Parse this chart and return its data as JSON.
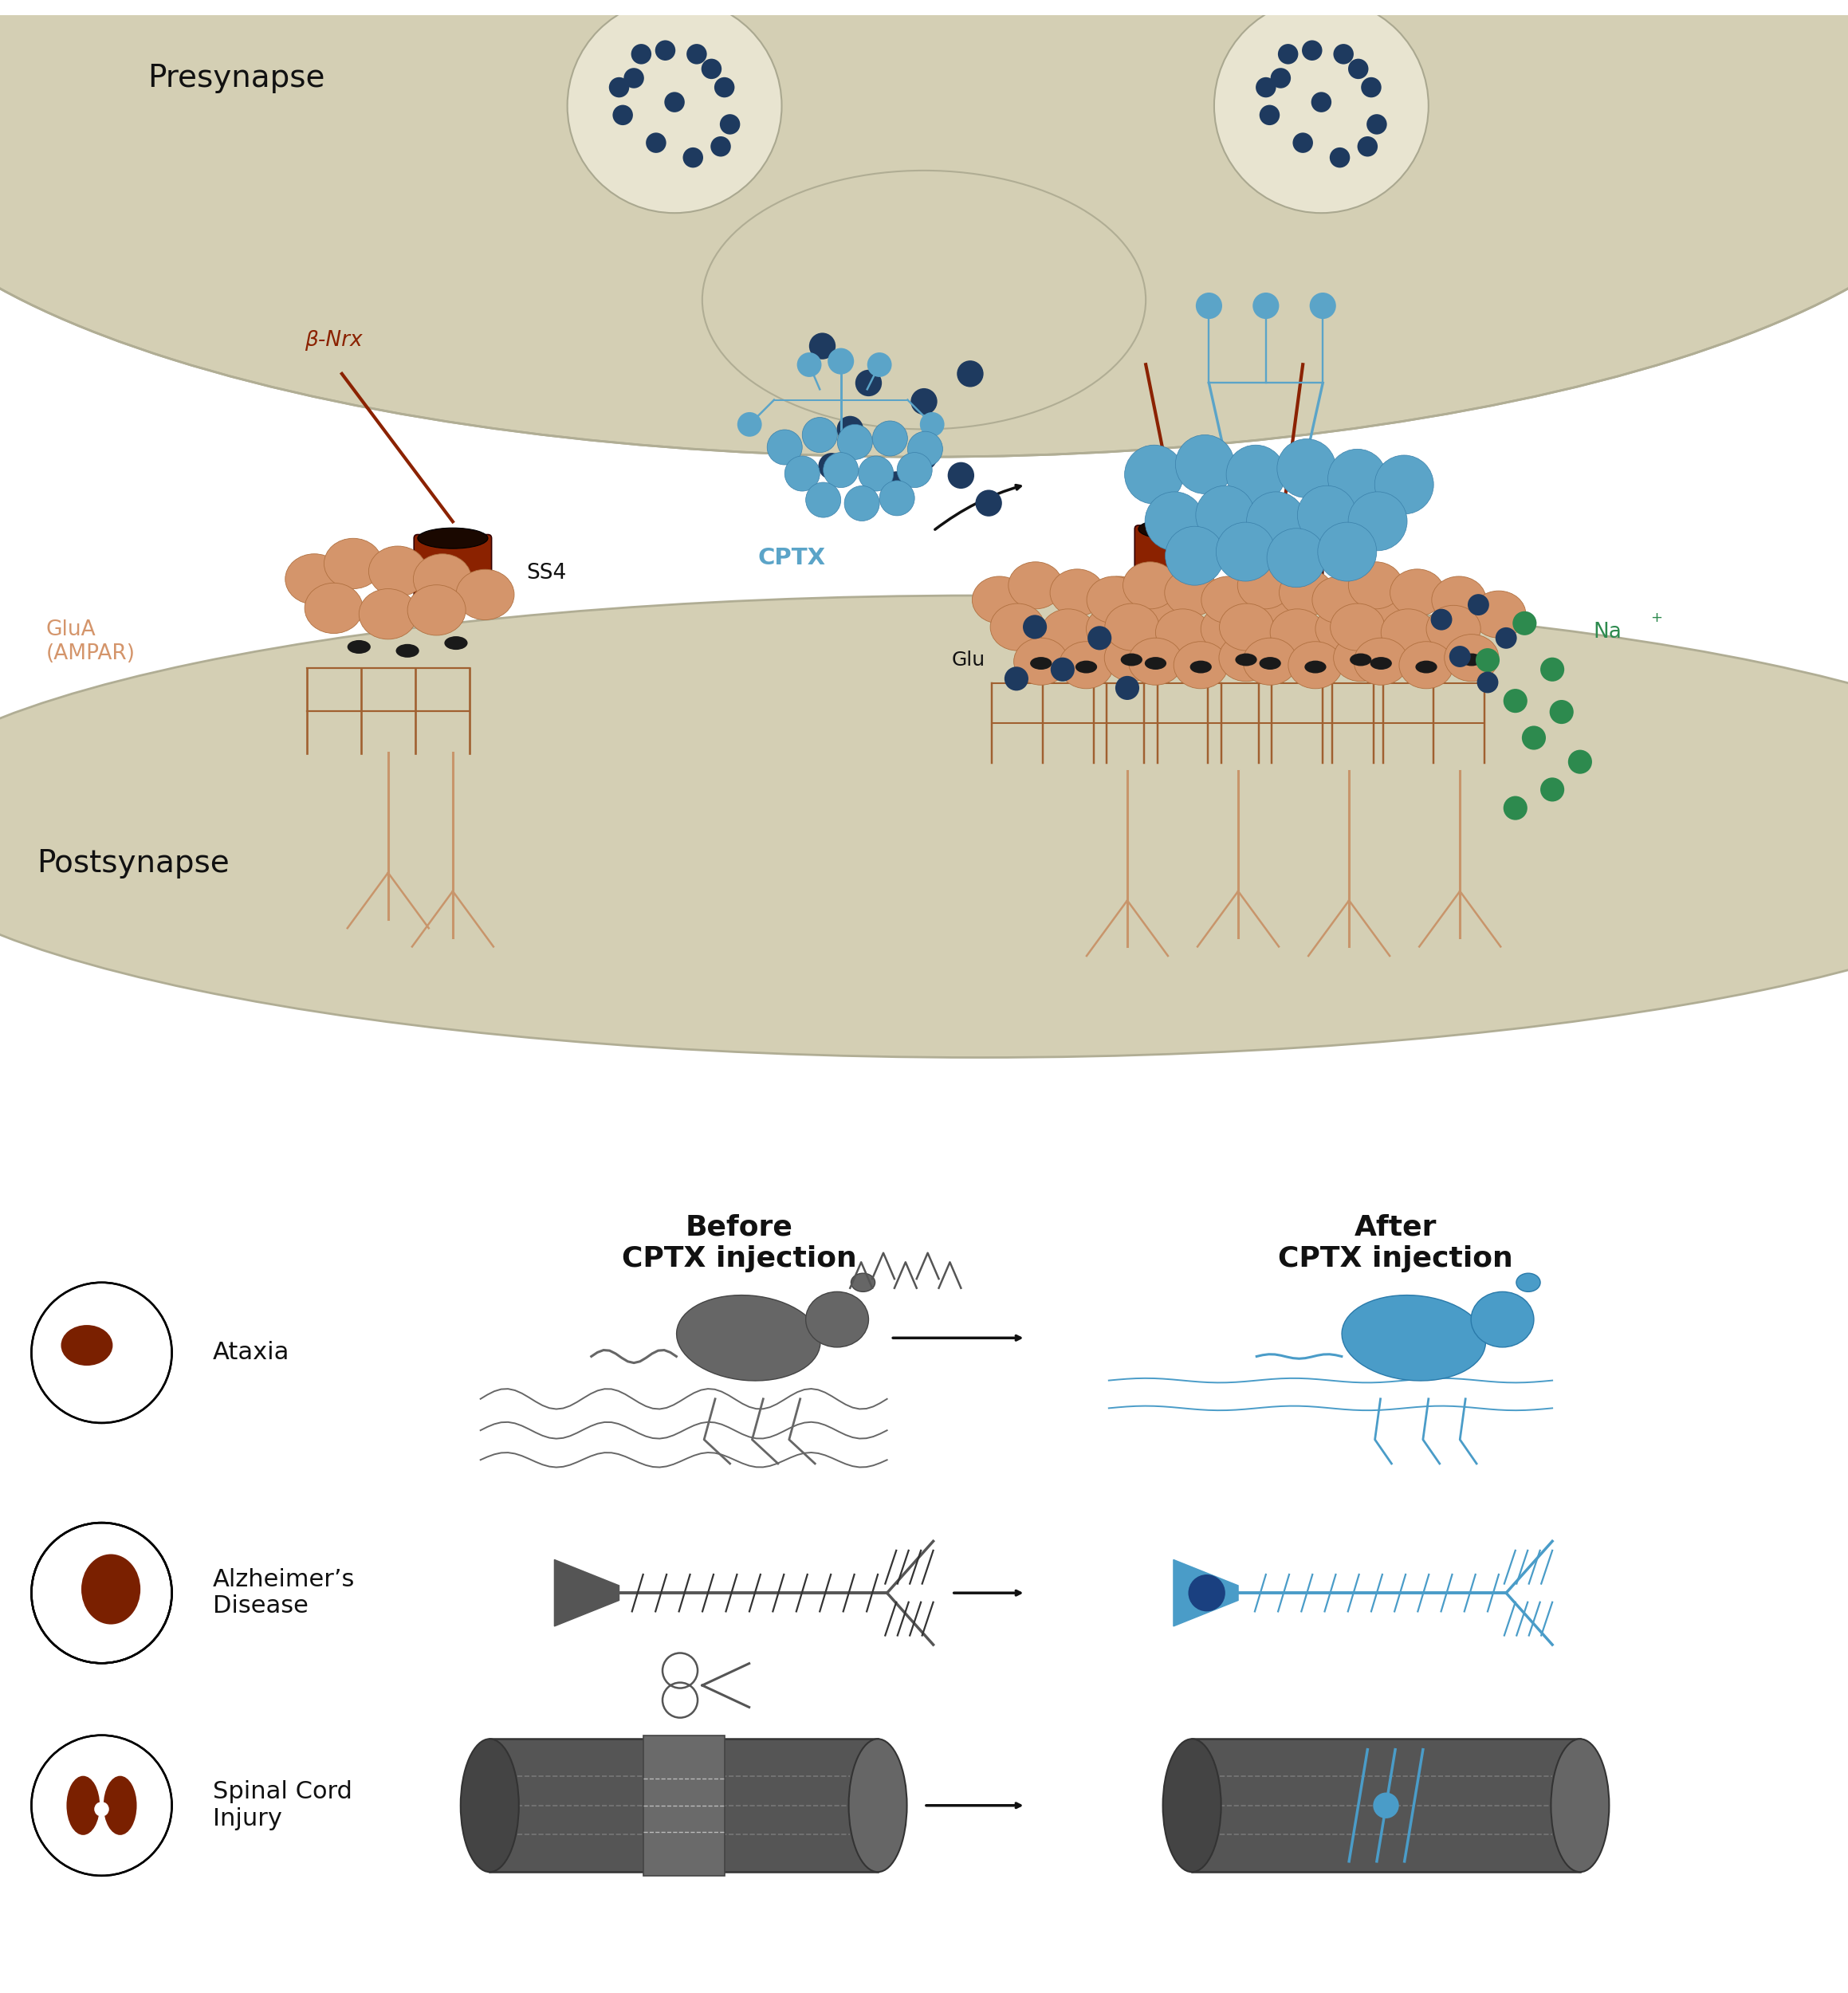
{
  "bg_color": "#ffffff",
  "presynapse_color": "#d4cfb4",
  "presynapse_edge": "#b0ad94",
  "presynapse_label": "Presynapse",
  "postsynapse_label": "Postsynapse",
  "beta_nrx_color": "#8B2200",
  "beta_nrx_label": "β-Nrx",
  "ss4_label": "SS4",
  "cptx_color": "#5ba4c8",
  "cptx_label": "CPTX",
  "glua_color": "#d4956b",
  "glua_label": "GluA\n(AMPAR)",
  "glu_label": "Glu",
  "na_label": "Na",
  "na_color": "#2d8a4e",
  "dark_blue": "#1e3a5f",
  "green_dot": "#2d8a4e",
  "before_label": "Before\nCPTX injection",
  "after_label": "After\nCPTX injection",
  "ataxia_label": "Ataxia",
  "alzheimer_label": "Alzheimer’s\nDisease",
  "spinal_label": "Spinal Cord\nInjury",
  "gray_mouse": "#555555",
  "blue_bright": "#4a9cc8",
  "brown_dark": "#7a2000",
  "cyl_color": "#555555",
  "vesicle_color": "#e8e4d0",
  "vesicle_edge": "#aaa890"
}
